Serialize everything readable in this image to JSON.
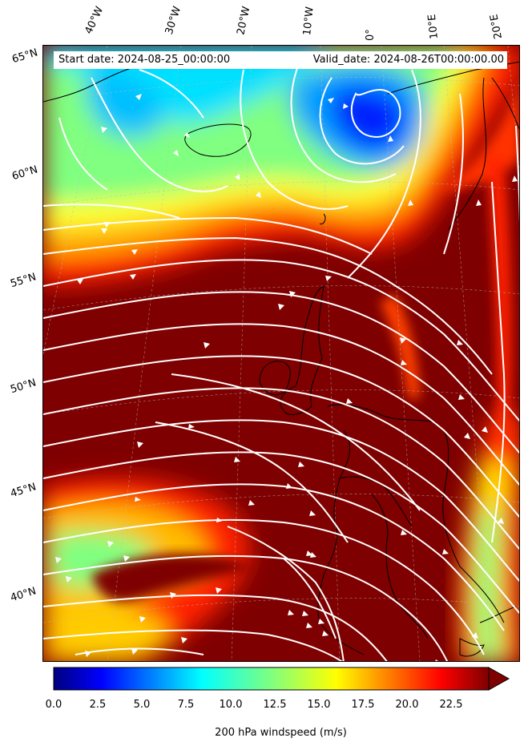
{
  "header": {
    "start_date": "Start date: 2024-08-25_00:00:00",
    "valid_date": "Valid_date: 2024-08-26T00:00:00.00"
  },
  "map": {
    "projection": "conic",
    "field": "200 hPa windspeed",
    "streamline_color": "#ffffff",
    "coastline_color": "#000000",
    "lon_labels": [
      "40°W",
      "30°W",
      "20°W",
      "10°W",
      "0°",
      "10°E",
      "20°E"
    ],
    "lat_labels": [
      "65°N",
      "60°N",
      "55°N",
      "50°N",
      "45°N",
      "40°N"
    ]
  },
  "colorbar": {
    "label": "200 hPa windspeed (m/s)",
    "colormap": "jet",
    "min": 0,
    "max": 25,
    "extend": "max",
    "ticks": [
      "0.0",
      "2.5",
      "5.0",
      "7.5",
      "10.0",
      "12.5",
      "15.0",
      "17.5",
      "20.0",
      "22.5"
    ],
    "colors": [
      "#00007f",
      "#0000ff",
      "#007fff",
      "#00ffff",
      "#7fff7f",
      "#ffff00",
      "#ff7f00",
      "#ff0000",
      "#7f0000"
    ]
  }
}
